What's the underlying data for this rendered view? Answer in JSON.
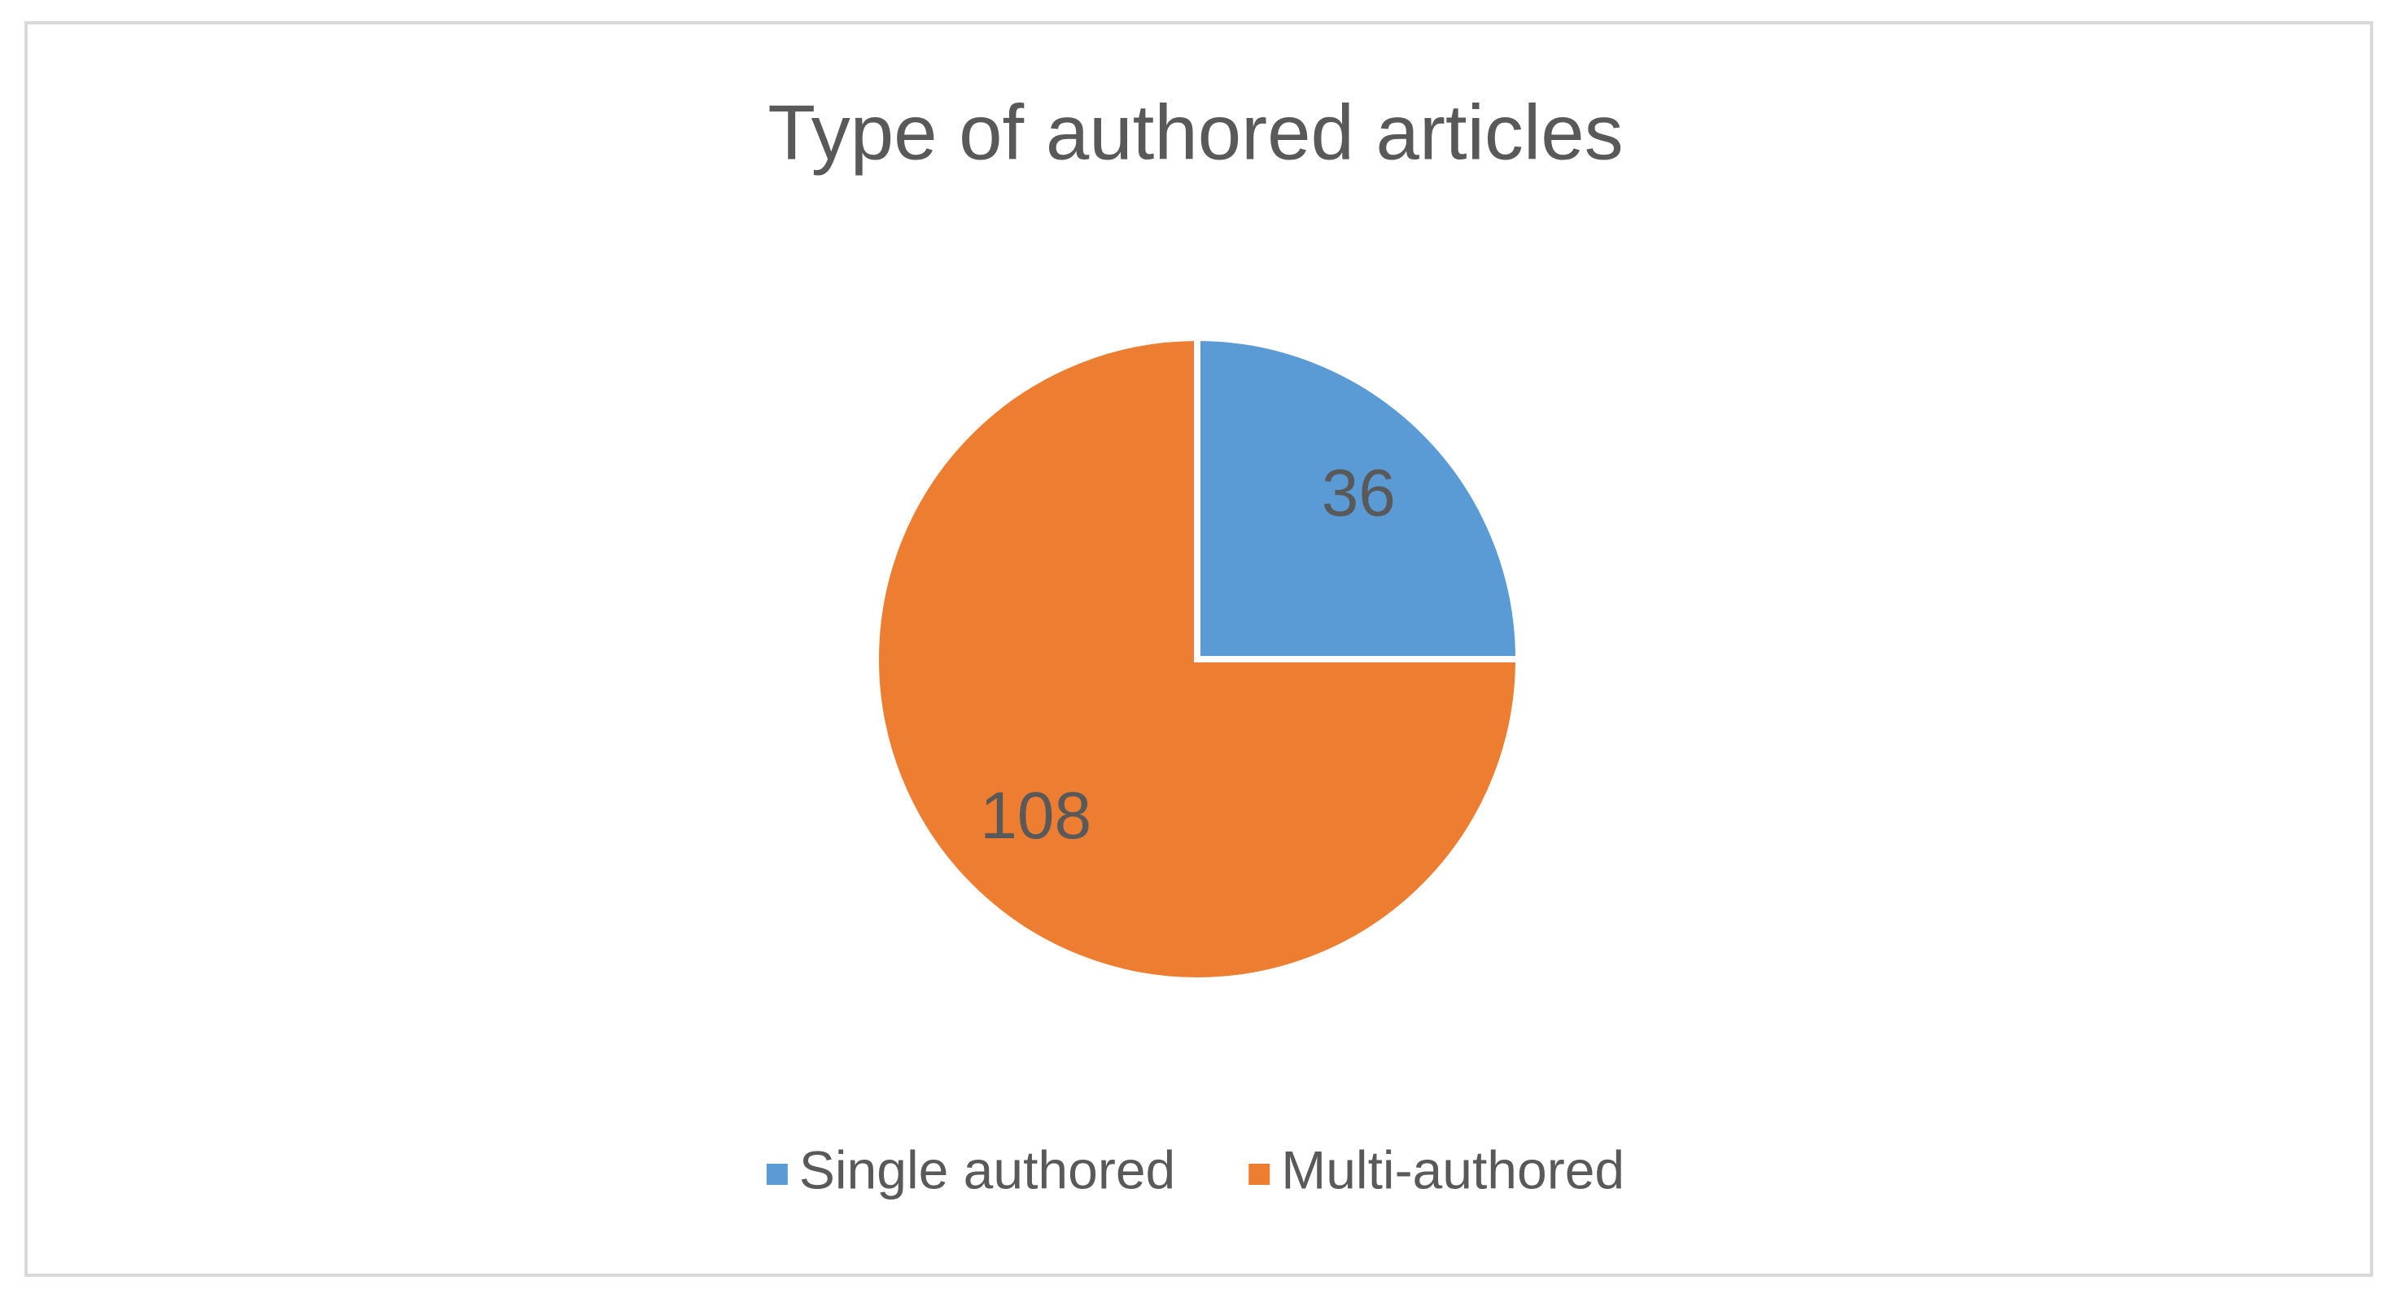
{
  "chart_data": {
    "type": "pie",
    "title": "Type of authored articles",
    "categories": [
      "Single authored",
      "Multi-authored"
    ],
    "values": [
      36,
      108
    ],
    "colors": [
      "#5b9bd5",
      "#ed7d31"
    ],
    "legend": "bottom"
  }
}
